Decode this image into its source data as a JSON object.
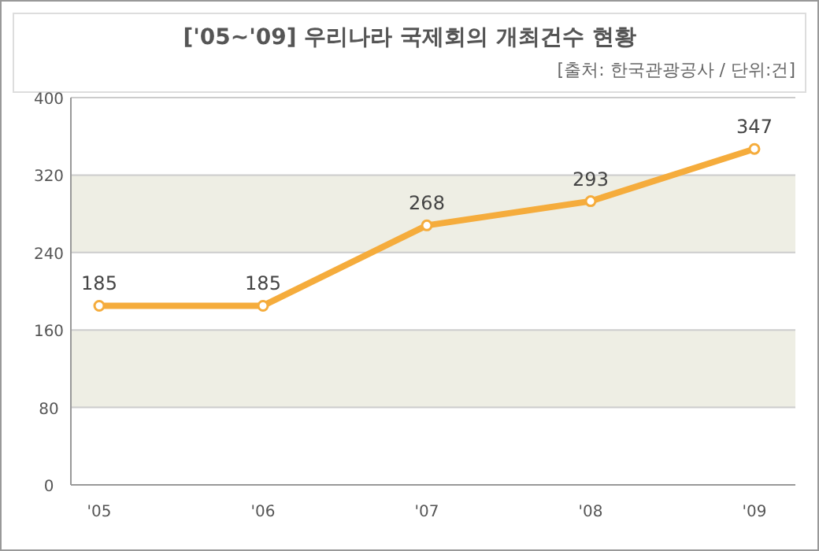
{
  "chart_data": {
    "type": "line",
    "title": "['05~'09] 우리나라 국제회의 개최건수 현황",
    "subtitle": "[출처: 한국관광공사 / 단위:건]",
    "categories": [
      "'05",
      "'06",
      "'07",
      "'08",
      "'09"
    ],
    "series": [
      {
        "color": "#f5ac3c",
        "values": [
          185,
          185,
          268,
          293,
          347
        ]
      }
    ],
    "ylim": [
      0,
      400
    ],
    "yticks": [
      0,
      80,
      160,
      240,
      320,
      400
    ],
    "grid": "y",
    "marker": "circle",
    "line_style": "solid",
    "data_labels": true
  }
}
